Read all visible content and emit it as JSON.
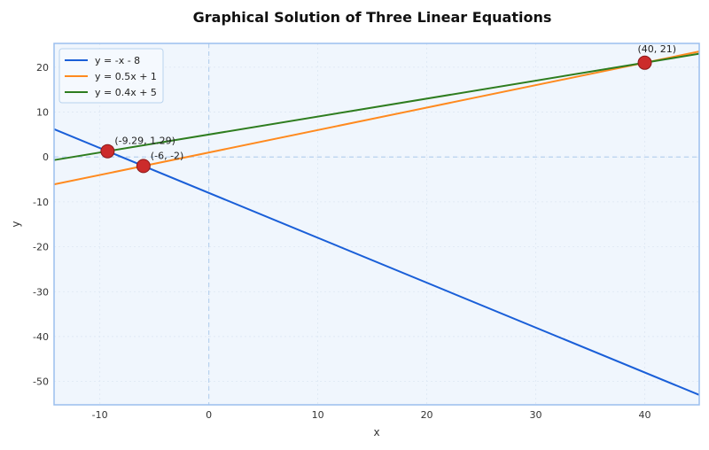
{
  "chart_data": {
    "type": "line",
    "title": "Graphical Solution of Three Linear Equations",
    "xlabel": "x",
    "ylabel": "y",
    "xlim": [
      -14.2,
      45
    ],
    "ylim": [
      -55.2,
      25.3
    ],
    "xticks": [
      -10,
      0,
      10,
      20,
      30,
      40
    ],
    "yticks": [
      -50,
      -40,
      -30,
      -20,
      -10,
      0,
      10,
      20
    ],
    "grid": true,
    "legend_position": "upper left",
    "series": [
      {
        "name": "y = -x - 8",
        "slope": -1,
        "intercept": -8,
        "color": "#1a5fd8",
        "x": [
          -14.2,
          45
        ],
        "y": [
          6.2,
          -53
        ]
      },
      {
        "name": "y = 0.5x + 1",
        "slope": 0.5,
        "intercept": 1,
        "color": "#ff8a1f",
        "x": [
          -14.2,
          45
        ],
        "y": [
          -6.1,
          23.5
        ]
      },
      {
        "name": "y = 0.4x + 5",
        "slope": 0.4,
        "intercept": 5,
        "color": "#2e7d1f",
        "x": [
          -14.2,
          45
        ],
        "y": [
          -0.68,
          23
        ]
      }
    ],
    "points": [
      {
        "x": -9.29,
        "y": 1.29,
        "label": "(-9.29, 1.29)"
      },
      {
        "x": -6,
        "y": -2,
        "label": "(-6, -2)"
      },
      {
        "x": 40,
        "y": 21,
        "label": "(40, 21)"
      }
    ]
  },
  "colors": {
    "plot_bg": "#f0f6fd",
    "frame": "#9bbfee",
    "marker_fill": "#cc2b2b",
    "marker_edge": "#8a1a1a",
    "zero_line": "#b8d2ee"
  }
}
